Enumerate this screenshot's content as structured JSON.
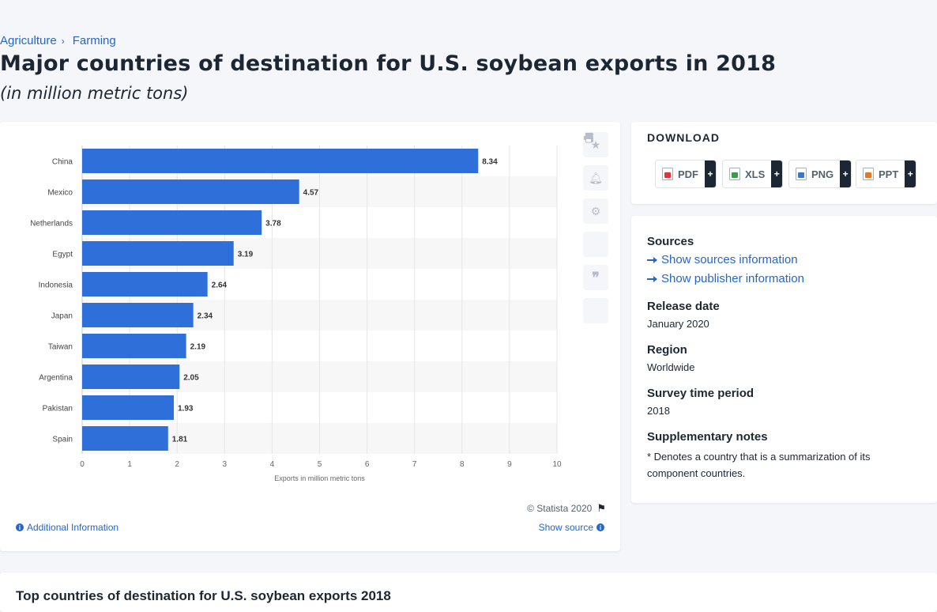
{
  "breadcrumb": {
    "items": [
      "Agriculture",
      "Farming"
    ]
  },
  "page": {
    "title": "Major countries of destination for U.S. soybean exports in 2018",
    "subtitle": "(in million metric tons)"
  },
  "chart_data": {
    "type": "bar",
    "orientation": "horizontal",
    "categories": [
      "China",
      "Mexico",
      "Netherlands",
      "Egypt",
      "Indonesia",
      "Japan",
      "Taiwan",
      "Argentina",
      "Pakistan",
      "Spain"
    ],
    "values": [
      8.34,
      4.57,
      3.78,
      3.19,
      2.64,
      2.34,
      2.19,
      2.05,
      1.93,
      1.81
    ],
    "value_labels": [
      "8.34",
      "4.57",
      "3.78",
      "3.19",
      "2.64",
      "2.34",
      "2.19",
      "2.05",
      "1.93",
      "1.81"
    ],
    "xlabel": "Exports in million metric tons",
    "xlim": [
      0,
      10
    ],
    "xticks": [
      "0",
      "1",
      "2",
      "3",
      "4",
      "5",
      "6",
      "7",
      "8",
      "9",
      "10"
    ],
    "grid": true,
    "bar_color": "#2f6fd9"
  },
  "chart_footer": {
    "copyright": "© Statista 2020",
    "additional_info": "Additional Information",
    "show_source": "Show source"
  },
  "tools": [
    "star-icon",
    "bell-icon",
    "gear-icon",
    "share-icon",
    "quote-icon",
    "print-icon"
  ],
  "download": {
    "title": "DOWNLOAD",
    "buttons": [
      {
        "label": "PDF",
        "color": "#d9363e"
      },
      {
        "label": "XLS",
        "color": "#3a9c4a"
      },
      {
        "label": "PNG",
        "color": "#3b78c9"
      },
      {
        "label": "PPT",
        "color": "#e07b28"
      }
    ]
  },
  "info": {
    "sources_title": "Sources",
    "sources_link": "Show sources information",
    "publisher_link": "Show publisher information",
    "release_title": "Release date",
    "release_value": "January 2020",
    "region_title": "Region",
    "region_value": "Worldwide",
    "survey_title": "Survey time period",
    "survey_value": "2018",
    "notes_title": "Supplementary notes",
    "notes_value": "* Denotes a country that is a summarization of its component countries."
  },
  "related": {
    "title": "Top countries of destination for U.S. soybean exports 2018"
  }
}
